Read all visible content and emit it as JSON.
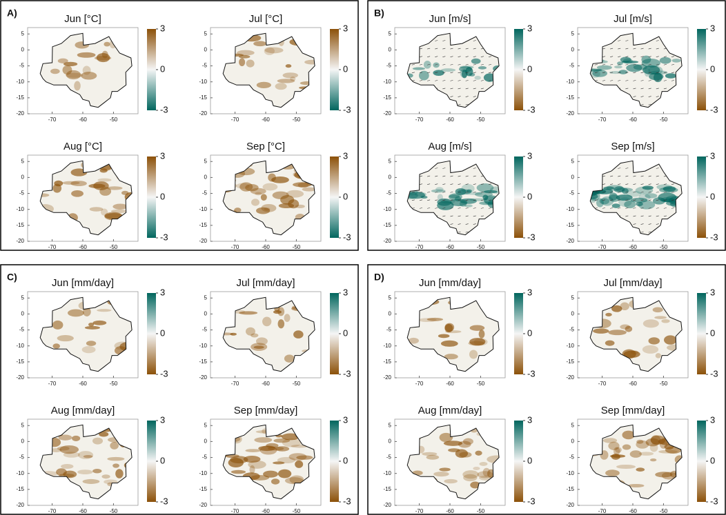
{
  "xlim": [
    -78,
    -42
  ],
  "ylim": [
    -20,
    7
  ],
  "xticks": [
    -70,
    -60,
    -50
  ],
  "yticks": [
    5,
    0,
    -5,
    -10,
    -15,
    -20
  ],
  "clim": [
    -3,
    3
  ],
  "cticks": [
    3,
    0,
    -3
  ],
  "panels": [
    {
      "label": "A)",
      "colormap": [
        "#8c5109",
        "#f5f5f5",
        "#01665e"
      ],
      "plots": [
        {
          "title": "Jun [°C]"
        },
        {
          "title": "Jul [°C]"
        },
        {
          "title": "Aug [°C]"
        },
        {
          "title": "Sep [°C]"
        }
      ]
    },
    {
      "label": "B)",
      "colormap": [
        "#01665e",
        "#f5f5f5",
        "#8c5109"
      ],
      "plots": [
        {
          "title": "Jun [m/s]"
        },
        {
          "title": "Jul [m/s]"
        },
        {
          "title": "Aug [m/s]"
        },
        {
          "title": "Sep [m/s]"
        }
      ]
    },
    {
      "label": "C)",
      "colormap": [
        "#01665e",
        "#f5f5f5",
        "#8c5109"
      ],
      "plots": [
        {
          "title": "Jun [mm/day]"
        },
        {
          "title": "Jul [mm/day]"
        },
        {
          "title": "Aug [mm/day]"
        },
        {
          "title": "Sep [mm/day]"
        }
      ]
    },
    {
      "label": "D)",
      "colormap": [
        "#01665e",
        "#f5f5f5",
        "#8c5109"
      ],
      "plots": [
        {
          "title": "Jun [mm/day]"
        },
        {
          "title": "Jul [mm/day]"
        },
        {
          "title": "Aug [mm/day]"
        },
        {
          "title": "Sep [mm/day]"
        }
      ]
    }
  ]
}
